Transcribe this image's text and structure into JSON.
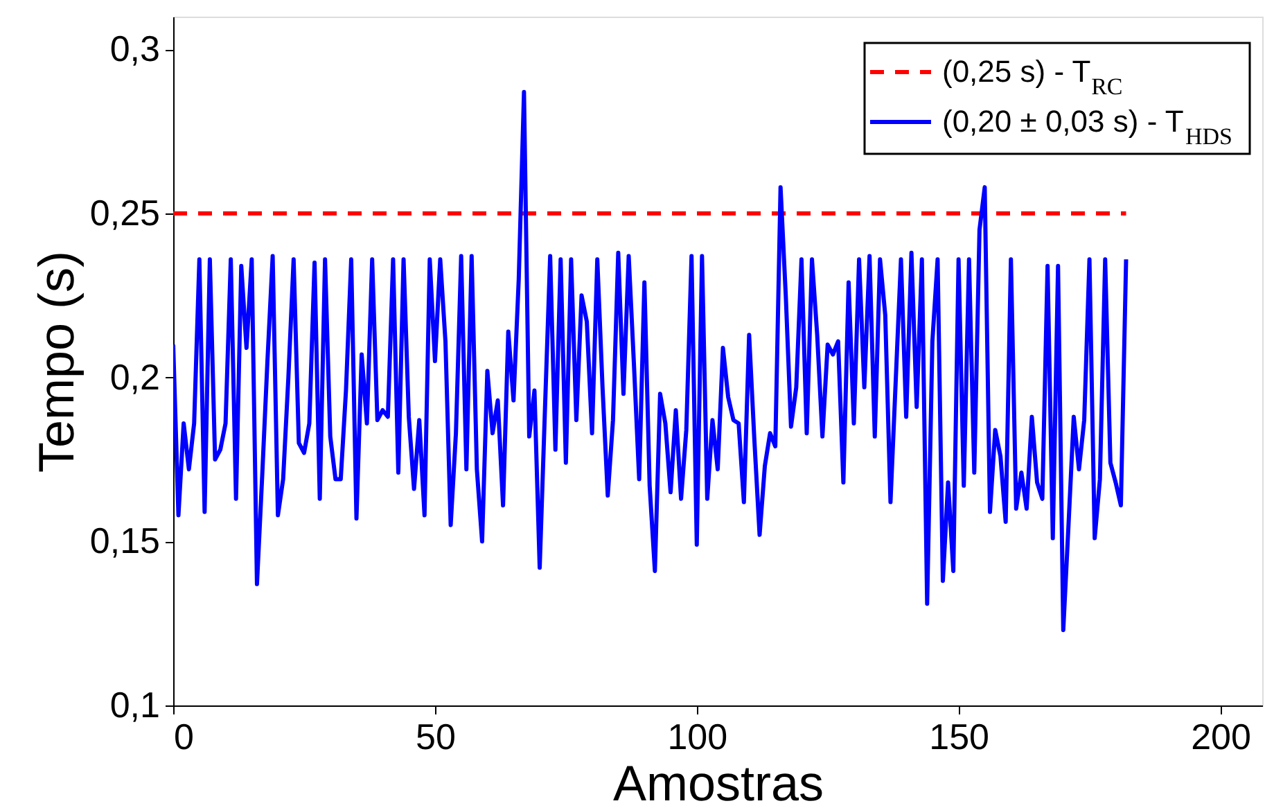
{
  "chart_data": {
    "type": "line",
    "xlabel": "Amostras",
    "ylabel": "Tempo (s)",
    "xlim": [
      0,
      208
    ],
    "xticks": [
      0,
      50,
      100,
      150,
      200
    ],
    "ylim": [
      0.1,
      0.31
    ],
    "yticks": [
      {
        "value": 0.1,
        "label": "0,1"
      },
      {
        "value": 0.15,
        "label": "0,15"
      },
      {
        "value": 0.2,
        "label": "0,2"
      },
      {
        "value": 0.25,
        "label": "0,25"
      },
      {
        "value": 0.3,
        "label": "0,3"
      }
    ],
    "grid": false,
    "legend": "top right",
    "marker": "none",
    "series": [
      {
        "name": "(0,25 s) - T$_{RC}$",
        "color": "#ff0000",
        "line_style": "dashed",
        "x": [
          0,
          182
        ],
        "values": [
          0.25,
          0.25
        ]
      },
      {
        "name": "(0,20 ± 0,03 s) - T$_{HDS}$",
        "color": "#0000ff",
        "line_style": "solid",
        "x": [
          0,
          1,
          2,
          3,
          4,
          5,
          6,
          7,
          8,
          9,
          10,
          11,
          12,
          13,
          14,
          15,
          16,
          17,
          18,
          19,
          20,
          21,
          22,
          23,
          24,
          25,
          26,
          27,
          28,
          29,
          30,
          31,
          32,
          33,
          34,
          35,
          36,
          37,
          38,
          39,
          40,
          41,
          42,
          43,
          44,
          45,
          46,
          47,
          48,
          49,
          50,
          51,
          52,
          53,
          54,
          55,
          56,
          57,
          58,
          59,
          60,
          61,
          62,
          63,
          64,
          65,
          66,
          67,
          68,
          69,
          70,
          71,
          72,
          73,
          74,
          75,
          76,
          77,
          78,
          79,
          80,
          81,
          82,
          83,
          84,
          85,
          86,
          87,
          88,
          89,
          90,
          91,
          92,
          93,
          94,
          95,
          96,
          97,
          98,
          99,
          100,
          101,
          102,
          103,
          104,
          105,
          106,
          107,
          108,
          109,
          110,
          111,
          112,
          113,
          114,
          115,
          116,
          117,
          118,
          119,
          120,
          121,
          122,
          123,
          124,
          125,
          126,
          127,
          128,
          129,
          130,
          131,
          132,
          133,
          134,
          135,
          136,
          137,
          138,
          139,
          140,
          141,
          142,
          143,
          144,
          145,
          146,
          147,
          148,
          149,
          150,
          151,
          152,
          153,
          154,
          155,
          156,
          157,
          158,
          159,
          160,
          161,
          162,
          163,
          164,
          165,
          166,
          167,
          168,
          169,
          170,
          171,
          172,
          173,
          174,
          175,
          176,
          177,
          178,
          179,
          180,
          181,
          182
        ],
        "values": [
          0.21,
          0.158,
          0.186,
          0.172,
          0.186,
          0.236,
          0.159,
          0.236,
          0.175,
          0.178,
          0.186,
          0.236,
          0.163,
          0.234,
          0.209,
          0.236,
          0.137,
          0.17,
          0.205,
          0.237,
          0.158,
          0.169,
          0.2,
          0.236,
          0.18,
          0.177,
          0.186,
          0.235,
          0.163,
          0.236,
          0.182,
          0.169,
          0.169,
          0.196,
          0.236,
          0.157,
          0.207,
          0.186,
          0.236,
          0.187,
          0.19,
          0.188,
          0.236,
          0.171,
          0.236,
          0.188,
          0.166,
          0.187,
          0.158,
          0.236,
          0.205,
          0.236,
          0.211,
          0.155,
          0.183,
          0.237,
          0.172,
          0.237,
          0.172,
          0.15,
          0.202,
          0.183,
          0.193,
          0.161,
          0.214,
          0.193,
          0.23,
          0.287,
          0.182,
          0.196,
          0.142,
          0.19,
          0.237,
          0.178,
          0.236,
          0.174,
          0.236,
          0.187,
          0.225,
          0.217,
          0.183,
          0.236,
          0.197,
          0.164,
          0.187,
          0.238,
          0.195,
          0.237,
          0.204,
          0.169,
          0.229,
          0.167,
          0.141,
          0.195,
          0.186,
          0.165,
          0.19,
          0.163,
          0.184,
          0.237,
          0.149,
          0.237,
          0.163,
          0.187,
          0.172,
          0.209,
          0.194,
          0.187,
          0.186,
          0.162,
          0.213,
          0.181,
          0.152,
          0.173,
          0.183,
          0.179,
          0.258,
          0.225,
          0.185,
          0.197,
          0.236,
          0.183,
          0.236,
          0.213,
          0.182,
          0.21,
          0.207,
          0.211,
          0.168,
          0.229,
          0.186,
          0.236,
          0.197,
          0.237,
          0.182,
          0.236,
          0.219,
          0.162,
          0.199,
          0.236,
          0.188,
          0.238,
          0.191,
          0.236,
          0.131,
          0.211,
          0.236,
          0.138,
          0.168,
          0.141,
          0.236,
          0.167,
          0.236,
          0.171,
          0.245,
          0.258,
          0.159,
          0.184,
          0.176,
          0.156,
          0.236,
          0.16,
          0.171,
          0.16,
          0.188,
          0.168,
          0.163,
          0.234,
          0.151,
          0.234,
          0.123,
          0.155,
          0.188,
          0.172,
          0.187,
          0.236,
          0.151,
          0.169,
          0.236,
          0.174,
          0.168,
          0.161,
          0.236
        ]
      }
    ]
  }
}
